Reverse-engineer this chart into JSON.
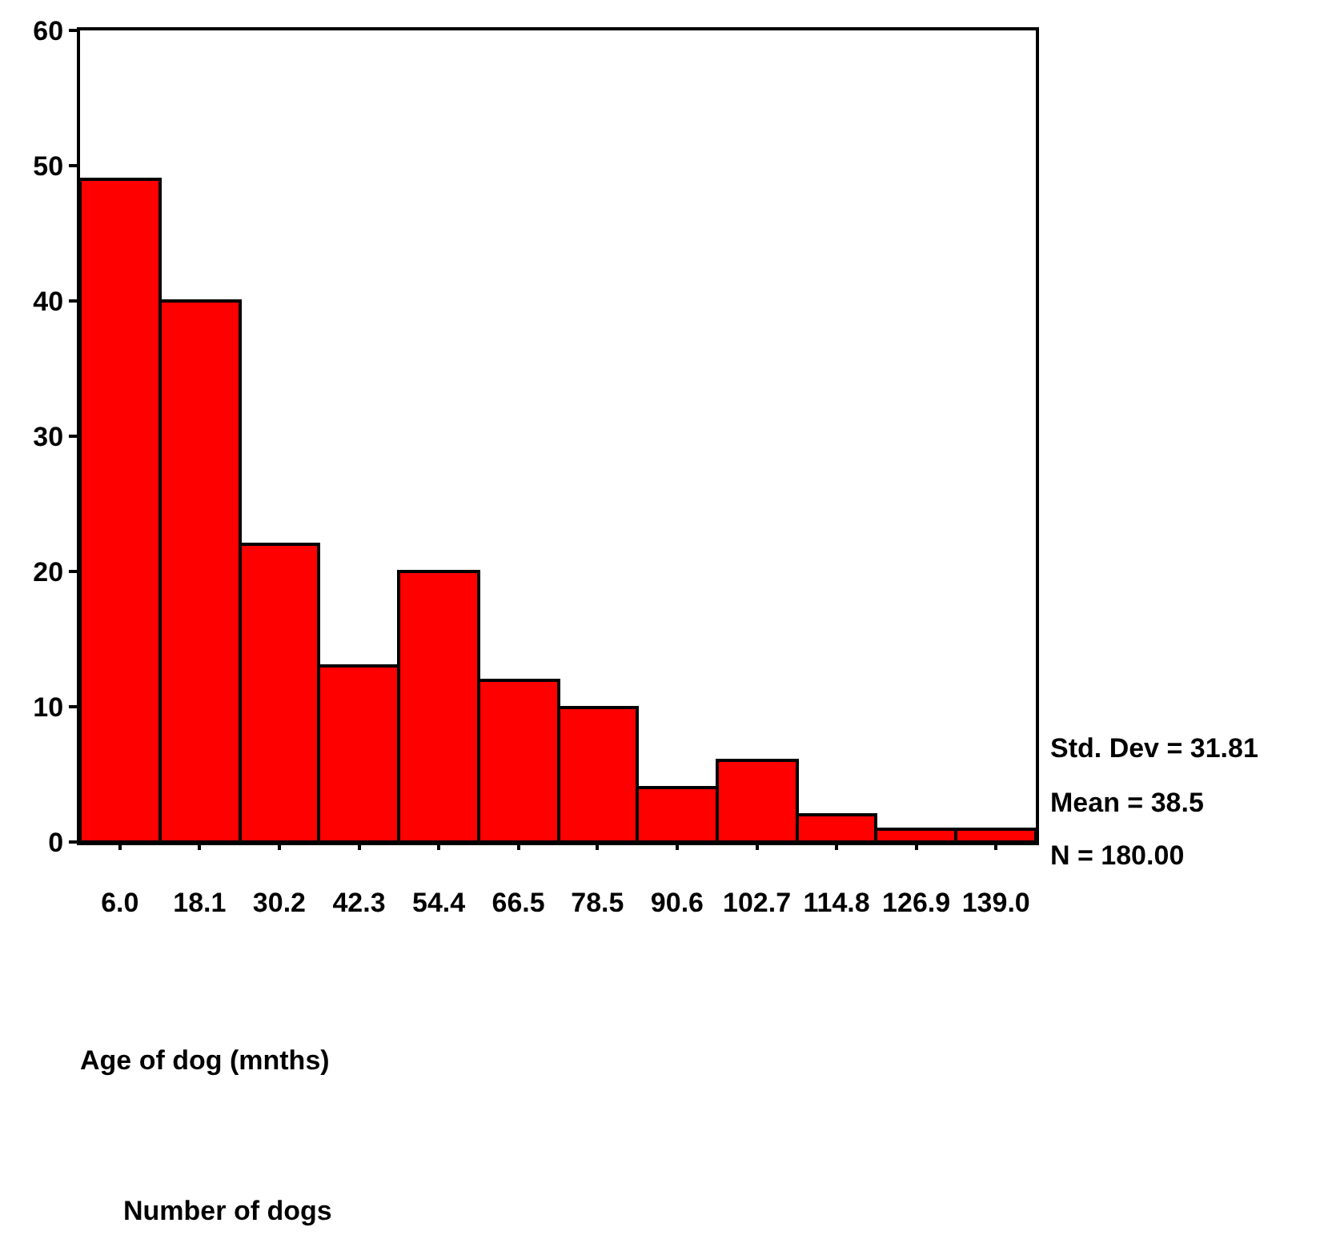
{
  "chart_data": {
    "type": "histogram",
    "bins": [
      -0.05,
      12.05,
      24.15,
      36.25,
      48.35,
      60.45,
      72.5,
      84.6,
      96.65,
      108.75,
      120.85,
      132.95,
      145.05
    ],
    "values": [
      49,
      40,
      22,
      13,
      20,
      12,
      10,
      4,
      6,
      2,
      1,
      1
    ],
    "color": "#ff0000",
    "xlim": [
      -0.05,
      145.05
    ],
    "xticks": [
      {
        "value": 6.0,
        "label": "6.0"
      },
      {
        "value": 18.1,
        "label": "18.1"
      },
      {
        "value": 30.2,
        "label": "30.2"
      },
      {
        "value": 42.3,
        "label": "42.3"
      },
      {
        "value": 54.4,
        "label": "54.4"
      },
      {
        "value": 66.5,
        "label": "66.5"
      },
      {
        "value": 78.5,
        "label": "78.5"
      },
      {
        "value": 90.6,
        "label": "90.6"
      },
      {
        "value": 102.7,
        "label": "102.7"
      },
      {
        "value": 114.8,
        "label": "114.8"
      },
      {
        "value": 126.9,
        "label": "126.9"
      },
      {
        "value": 139.0,
        "label": "139.0"
      }
    ],
    "ylim": [
      0,
      60
    ],
    "yticks": [
      0,
      10,
      20,
      30,
      40,
      50,
      60
    ],
    "xlabel": "Age of dog (mnths)",
    "annotations": [
      "Std. Dev = 31.81",
      "Mean = 38.5",
      "N = 180.00",
      "Number of dogs"
    ]
  }
}
